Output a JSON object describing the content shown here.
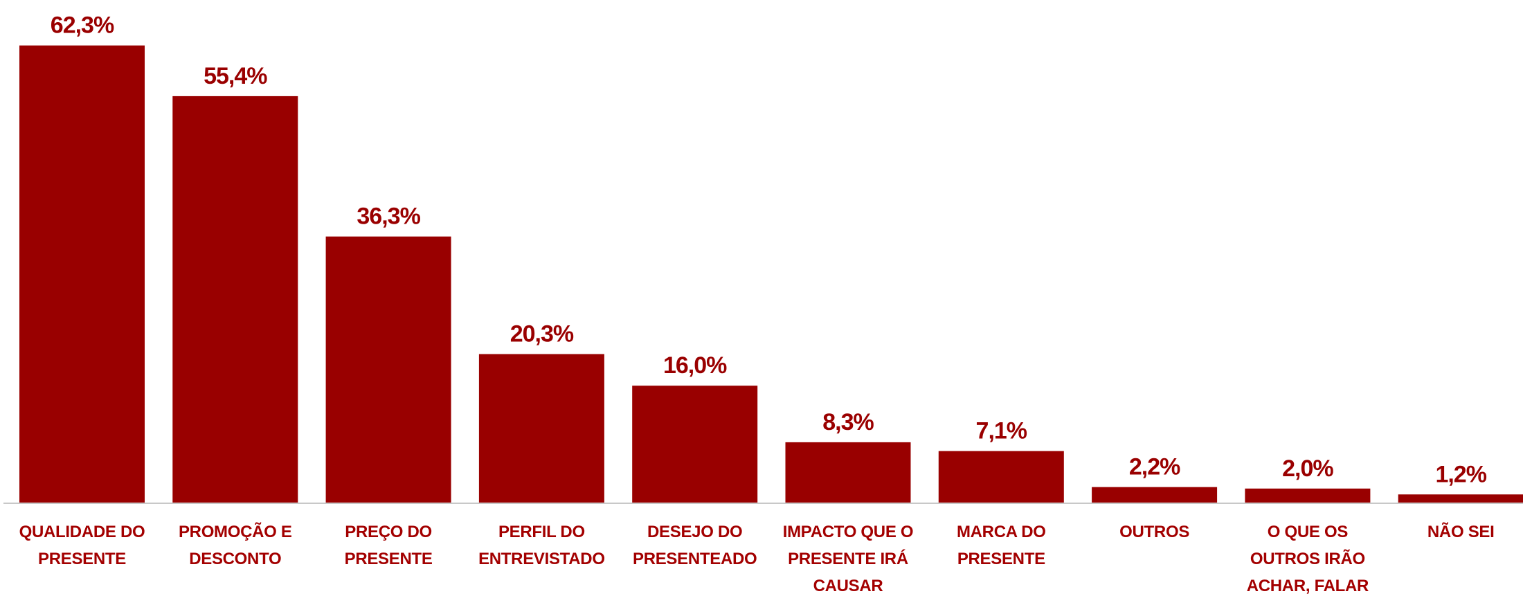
{
  "chart_data": {
    "type": "bar",
    "categories": [
      "QUALIDADE DO PRESENTE",
      "PROMOÇÃO E DESCONTO",
      "PREÇO DO PRESENTE",
      "PERFIL DO ENTREVISTADO",
      "DESEJO DO PRESENTEADO",
      "IMPACTO QUE O PRESENTE IRÁ CAUSAR",
      "MARCA DO PRESENTE",
      "OUTROS",
      "O QUE OS OUTROS IRÃO ACHAR, FALAR",
      "NÃO SEI"
    ],
    "values": [
      62.3,
      55.4,
      36.3,
      20.3,
      16.0,
      8.3,
      7.1,
      2.2,
      2.0,
      1.2
    ],
    "value_labels": [
      "62,3%",
      "55,4%",
      "36,3%",
      "20,3%",
      "16,0%",
      "8,3%",
      "7,1%",
      "2,2%",
      "2,0%",
      "1,2%"
    ],
    "color": "#990000",
    "ylim": [
      0,
      65
    ]
  }
}
